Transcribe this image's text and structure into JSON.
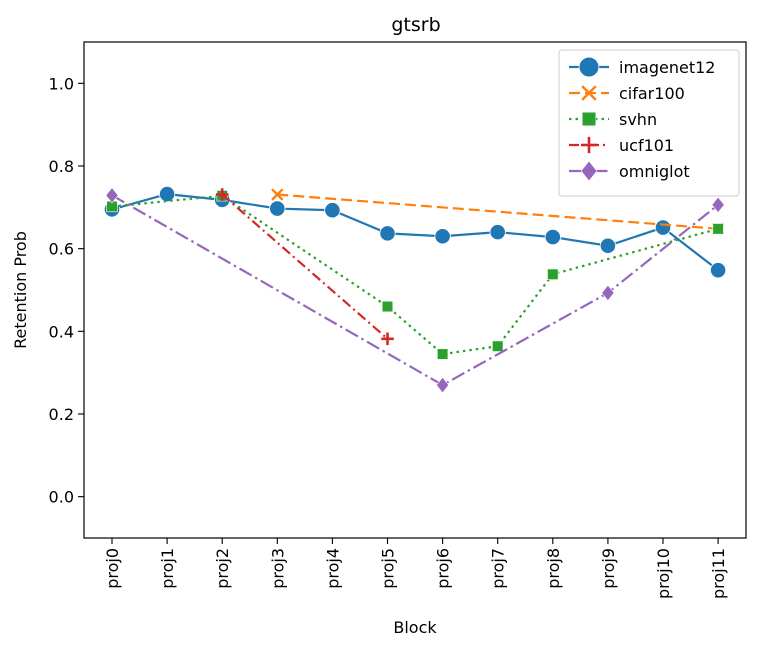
{
  "chart_data": {
    "type": "line",
    "title": "gtsrb",
    "xlabel": "Block",
    "ylabel": "Retention Prob",
    "categories": [
      "proj0",
      "proj1",
      "proj2",
      "proj3",
      "proj4",
      "proj5",
      "proj6",
      "proj7",
      "proj8",
      "proj9",
      "proj10",
      "proj11"
    ],
    "ylim": [
      -0.1,
      1.1
    ],
    "yticks": [
      "0.0",
      "0.2",
      "0.4",
      "0.6",
      "0.8",
      "1.0"
    ],
    "legend_position": "top-right",
    "grid": false,
    "series": [
      {
        "name": "imagenet12",
        "color": "#1f77b4",
        "style": "solid",
        "marker": "circle",
        "values": [
          0.695,
          0.732,
          0.718,
          0.697,
          0.693,
          0.637,
          0.63,
          0.64,
          0.628,
          0.607,
          0.651,
          0.548
        ]
      },
      {
        "name": "cifar100",
        "color": "#ff7f0e",
        "style": "dashed",
        "marker": "x",
        "values": [
          null,
          null,
          null,
          0.731,
          null,
          null,
          null,
          null,
          null,
          null,
          null,
          0.648
        ]
      },
      {
        "name": "svhn",
        "color": "#2ca02c",
        "style": "dotted",
        "marker": "square",
        "values": [
          0.702,
          null,
          0.728,
          null,
          null,
          0.46,
          0.345,
          0.364,
          0.538,
          null,
          null,
          0.648
        ]
      },
      {
        "name": "ucf101",
        "color": "#d62728",
        "style": "dashdot",
        "marker": "plus",
        "values": [
          null,
          null,
          0.731,
          null,
          null,
          0.382,
          null,
          null,
          null,
          null,
          null,
          null
        ]
      },
      {
        "name": "omniglot",
        "color": "#9467bd",
        "style": "dashdotfine",
        "marker": "diamond",
        "values": [
          0.729,
          null,
          null,
          null,
          null,
          null,
          0.27,
          null,
          null,
          0.493,
          null,
          0.706
        ]
      }
    ]
  }
}
